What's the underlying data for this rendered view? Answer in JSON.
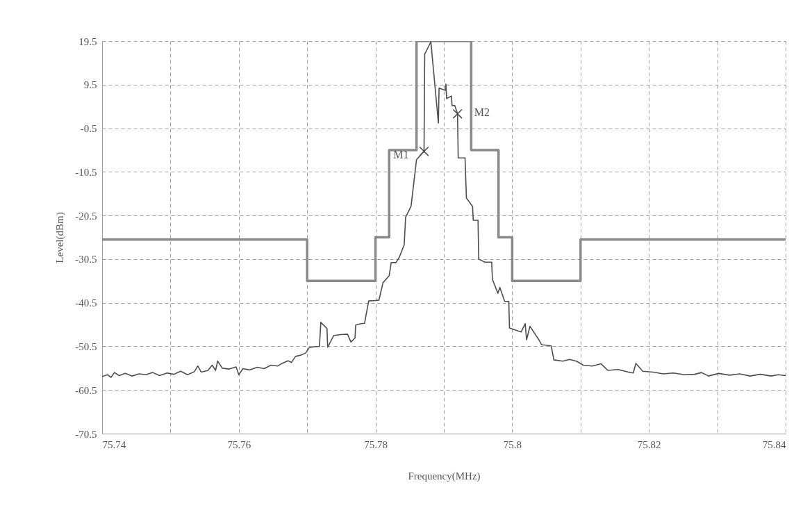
{
  "chart_data": {
    "type": "line",
    "xlabel": "Frequency(MHz)",
    "ylabel": "Level(dBm)",
    "xlim": [
      75.74,
      75.84
    ],
    "ylim": [
      -70.5,
      19.5
    ],
    "xticks": [
      75.74,
      {
        "value": 75.75,
        "label": null
      },
      75.76,
      {
        "value": 75.77,
        "label": null
      },
      75.78,
      {
        "value": 75.79,
        "label": null
      },
      75.8,
      {
        "value": 75.81,
        "label": null
      },
      75.82,
      {
        "value": 75.83,
        "label": null
      },
      75.84
    ],
    "yticks": [
      19.5,
      9.5,
      -0.5,
      -10.5,
      -20.5,
      -30.5,
      -40.5,
      -50.5,
      -60.5,
      -70.5
    ],
    "grid": true,
    "series": [
      {
        "color": "#8a8a8a",
        "x": [
          75.74,
          75.77,
          75.77,
          75.78,
          75.78,
          75.782,
          75.782,
          75.786,
          75.786,
          75.794,
          75.794,
          75.798,
          75.798,
          75.8,
          75.8,
          75.81,
          75.81,
          75.84
        ],
        "values": [
          -26,
          -26,
          -35.5,
          -35.5,
          -25.5,
          -25.5,
          -5.5,
          -5.5,
          19.5,
          19.5,
          -5.5,
          -5.5,
          -25.5,
          -25.5,
          -35.5,
          -35.5,
          -26,
          -26
        ]
      },
      {
        "color": "#4d4d4d",
        "x": [
          75.74,
          75.7408,
          75.7413,
          75.7418,
          75.7425,
          75.7434,
          75.7444,
          75.7454,
          75.7464,
          75.7474,
          75.7484,
          75.7495,
          75.7505,
          75.7515,
          75.7525,
          75.7535,
          75.754,
          75.7545,
          75.7555,
          75.7561,
          75.7566,
          75.7569,
          75.7576,
          75.7586,
          75.7596,
          75.76,
          75.7606,
          75.7616,
          75.7627,
          75.7637,
          75.7647,
          75.7657,
          75.7662,
          75.7672,
          75.7677,
          75.7683,
          75.7691,
          75.7698,
          75.7703,
          75.771,
          75.7718,
          75.772,
          75.7729,
          75.773,
          75.7739,
          75.7749,
          75.7759,
          75.7764,
          75.777,
          75.7771,
          75.7779,
          75.7784,
          75.779,
          75.7799,
          75.7805,
          75.7811,
          75.782,
          75.7823,
          75.783,
          75.7835,
          75.7842,
          75.7844,
          75.7852,
          75.786,
          75.7871,
          75.7872,
          75.7881,
          75.7892,
          75.7893,
          75.7902,
          75.7903,
          75.7904,
          75.7911,
          75.7912,
          75.7916,
          75.792,
          75.7921,
          75.7931,
          75.7933,
          75.7942,
          75.7943,
          75.795,
          75.7951,
          75.796,
          75.797,
          75.7971,
          75.7979,
          75.7982,
          75.7989,
          75.7995,
          75.7996,
          75.8013,
          75.8019,
          75.8021,
          75.8026,
          75.8039,
          75.8043,
          75.8057,
          75.8061,
          75.8074,
          75.8084,
          75.8094,
          75.8104,
          75.8117,
          75.813,
          75.814,
          75.8155,
          75.817,
          75.8177,
          75.8181,
          75.8191,
          75.8206,
          75.8221,
          75.8236,
          75.8252,
          75.8267,
          75.8277,
          75.8287,
          75.8302,
          75.8318,
          75.8333,
          75.8348,
          75.8363,
          75.8379,
          75.8389,
          75.84
        ],
        "values": [
          -57.4,
          -57.0,
          -57.6,
          -56.5,
          -57.2,
          -56.7,
          -57.3,
          -56.8,
          -57.0,
          -56.5,
          -57.2,
          -56.6,
          -56.9,
          -56.2,
          -57.0,
          -56.3,
          -55.0,
          -56.4,
          -56.0,
          -54.8,
          -56.0,
          -53.9,
          -55.5,
          -55.7,
          -55.2,
          -57.0,
          -55.6,
          -55.9,
          -55.3,
          -55.6,
          -54.8,
          -55.0,
          -54.5,
          -53.8,
          -54.2,
          -52.8,
          -52.5,
          -52.0,
          -50.8,
          -50.6,
          -50.5,
          -45.0,
          -46.4,
          -50.7,
          -48.0,
          -47.8,
          -47.7,
          -49.5,
          -48.6,
          -45.6,
          -45.3,
          -45.2,
          -40.1,
          -40.0,
          -39.9,
          -35.9,
          -34.3,
          -31.3,
          -31.3,
          -30.0,
          -27.2,
          -20.9,
          -18.4,
          -7.7,
          -5.8,
          16.5,
          19.3,
          0.7,
          8.7,
          8.2,
          9.6,
          6.3,
          6.9,
          4.7,
          4.7,
          2.8,
          -7.3,
          -7.3,
          -16.5,
          -18.4,
          -21.6,
          -21.6,
          -30.5,
          -31.2,
          -31.2,
          -35.1,
          -38.3,
          -37.0,
          -40.2,
          -40.2,
          -46.3,
          -47.2,
          -45.3,
          -49.0,
          -45.9,
          -49.0,
          -50.1,
          -50.4,
          -53.6,
          -53.9,
          -53.5,
          -53.9,
          -54.8,
          -55.0,
          -54.5,
          -56.0,
          -55.8,
          -56.4,
          -56.6,
          -54.4,
          -56.2,
          -56.4,
          -56.8,
          -56.6,
          -57.0,
          -56.9,
          -56.5,
          -57.3,
          -56.7,
          -57.1,
          -56.8,
          -57.3,
          -56.9,
          -57.3,
          -57.0,
          -57.2
        ]
      },
      {
        "type": "scatter",
        "color": "#4d4d4d",
        "marker": "cross",
        "x": [
          75.7871,
          75.792
        ],
        "values": [
          -5.8,
          2.8
        ]
      }
    ],
    "annotations": [
      {
        "text": "M1",
        "x": 75.7871,
        "y": -5.8
      },
      {
        "text": "M2",
        "x": 75.792,
        "y": 2.8
      }
    ]
  }
}
